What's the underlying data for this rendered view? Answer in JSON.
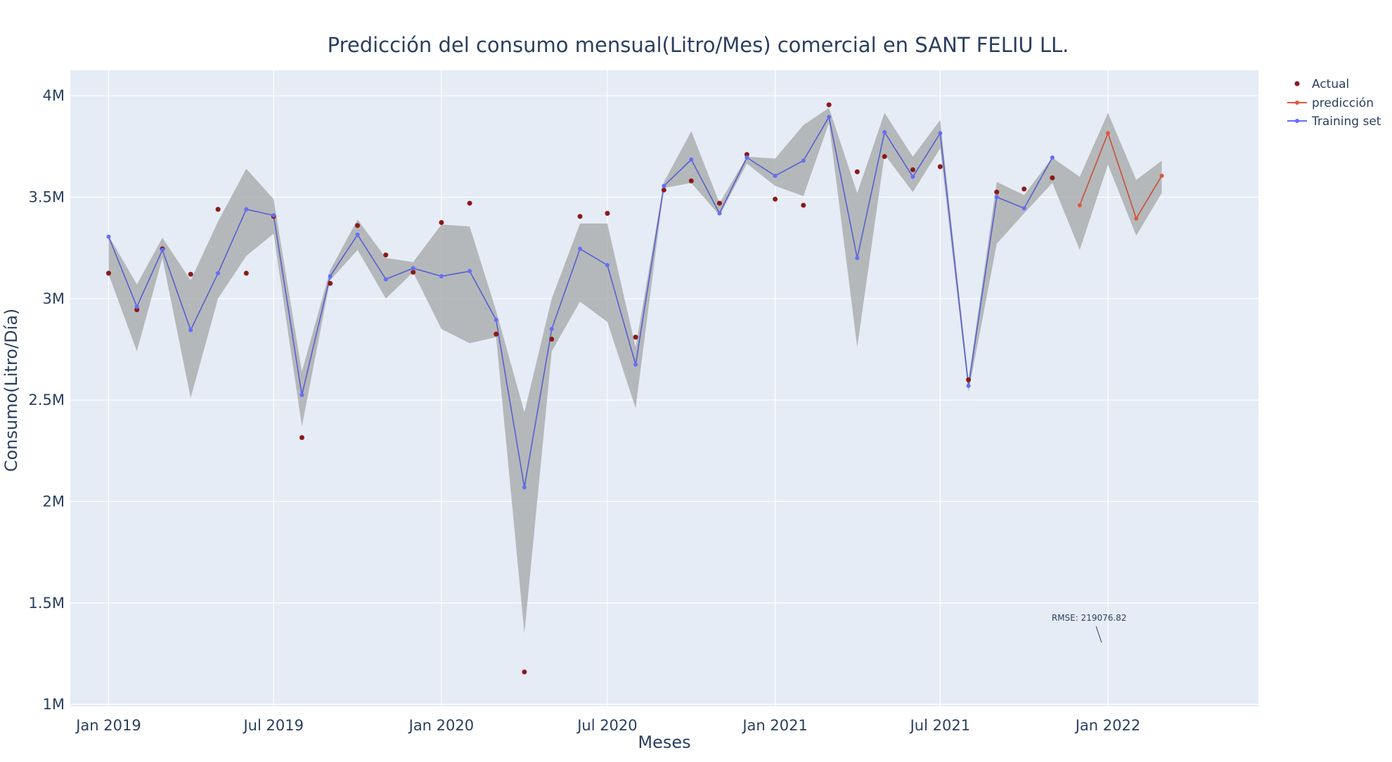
{
  "chart_data": {
    "type": "line",
    "title": "Predicción del consumo mensual(Litro/Mes) comercial en SANT FELIU LL.",
    "xlabel": "Meses",
    "ylabel": "Consumo(Litro/Día)",
    "x_ticks": [
      {
        "date": "2019-01-01",
        "label": "Jan 2019"
      },
      {
        "date": "2019-07-01",
        "label": "Jul 2019"
      },
      {
        "date": "2020-01-01",
        "label": "Jan 2020"
      },
      {
        "date": "2020-07-01",
        "label": "Jul 2020"
      },
      {
        "date": "2021-01-01",
        "label": "Jan 2021"
      },
      {
        "date": "2021-07-01",
        "label": "Jul 2021"
      },
      {
        "date": "2022-01-01",
        "label": "Jan 2022"
      }
    ],
    "xlim": [
      "2018-11-20",
      "2022-06-15"
    ],
    "y_ticks": [
      {
        "value": 1000000,
        "label": "1M"
      },
      {
        "value": 1500000,
        "label": "1.5M"
      },
      {
        "value": 2000000,
        "label": "2M"
      },
      {
        "value": 2500000,
        "label": "2.5M"
      },
      {
        "value": 3000000,
        "label": "3M"
      },
      {
        "value": 3500000,
        "label": "3.5M"
      },
      {
        "value": 4000000,
        "label": "4M"
      }
    ],
    "ylim": [
      990000,
      4125000
    ],
    "grid": true,
    "legend_position": "top-right",
    "legend": [
      {
        "name": "Actual",
        "kind": "marker",
        "color": "#8b1a1a"
      },
      {
        "name": "predicción",
        "kind": "line",
        "color": "#e0573f"
      },
      {
        "name": "Training set",
        "kind": "line",
        "color": "#636efa"
      }
    ],
    "colors": {
      "background": "#e5ecf6",
      "grid": "#ffffff",
      "actual": "#8b1a1a",
      "prediction": "#e0573f",
      "prediction_line": "#c8503a",
      "training": "#636efa",
      "training_line": "#5560d0",
      "band": "#a9abab",
      "text": "#2a3f5f"
    },
    "series": [
      {
        "name": "Actual",
        "x": [
          "2019-01-01",
          "2019-02-01",
          "2019-03-01",
          "2019-04-01",
          "2019-05-01",
          "2019-06-01",
          "2019-07-01",
          "2019-08-01",
          "2019-09-01",
          "2019-10-01",
          "2019-11-01",
          "2019-12-01",
          "2020-01-01",
          "2020-02-01",
          "2020-03-01",
          "2020-04-01",
          "2020-05-01",
          "2020-06-01",
          "2020-07-01",
          "2020-08-01",
          "2020-09-01",
          "2020-10-01",
          "2020-11-01",
          "2020-12-01",
          "2021-01-01",
          "2021-02-01",
          "2021-03-01",
          "2021-04-01",
          "2021-05-01",
          "2021-06-01",
          "2021-07-01",
          "2021-08-01",
          "2021-09-01",
          "2021-10-01",
          "2021-11-01"
        ],
        "values": [
          3125000,
          2945000,
          3245000,
          3120000,
          3440000,
          3125000,
          3405000,
          2315000,
          3075000,
          3360000,
          3215000,
          3130000,
          3375000,
          3470000,
          2825000,
          1160000,
          2800000,
          3405000,
          3420000,
          2810000,
          3535000,
          3580000,
          3470000,
          3710000,
          3490000,
          3460000,
          3955000,
          3625000,
          3700000,
          3635000,
          3650000,
          2600000,
          3525000,
          3540000,
          3595000
        ]
      },
      {
        "name": "Training set",
        "x": [
          "2019-01-01",
          "2019-02-01",
          "2019-03-01",
          "2019-04-01",
          "2019-05-01",
          "2019-06-01",
          "2019-07-01",
          "2019-08-01",
          "2019-09-01",
          "2019-10-01",
          "2019-11-01",
          "2019-12-01",
          "2020-01-01",
          "2020-02-01",
          "2020-03-01",
          "2020-04-01",
          "2020-05-01",
          "2020-06-01",
          "2020-07-01",
          "2020-08-01",
          "2020-09-01",
          "2020-10-01",
          "2020-11-01",
          "2020-12-01",
          "2021-01-01",
          "2021-02-01",
          "2021-03-01",
          "2021-04-01",
          "2021-05-01",
          "2021-06-01",
          "2021-07-01",
          "2021-08-01",
          "2021-09-01",
          "2021-10-01",
          "2021-11-01"
        ],
        "values": [
          3305000,
          2960000,
          3240000,
          2845000,
          3125000,
          3440000,
          3410000,
          2525000,
          3110000,
          3315000,
          3095000,
          3150000,
          3110000,
          3135000,
          2895000,
          2070000,
          2850000,
          3245000,
          3165000,
          2675000,
          3555000,
          3685000,
          3420000,
          3695000,
          3605000,
          3680000,
          3895000,
          3200000,
          3820000,
          3600000,
          3815000,
          2570000,
          3500000,
          3445000,
          3695000
        ]
      },
      {
        "name": "predicción",
        "x": [
          "2021-12-01",
          "2022-01-01",
          "2022-02-01",
          "2022-03-01"
        ],
        "values": [
          3460000,
          3815000,
          3395000,
          3605000
        ]
      }
    ],
    "confidence_band": {
      "x": [
        "2019-01-01",
        "2019-02-01",
        "2019-03-01",
        "2019-04-01",
        "2019-05-01",
        "2019-06-01",
        "2019-07-01",
        "2019-08-01",
        "2019-09-01",
        "2019-10-01",
        "2019-11-01",
        "2019-12-01",
        "2020-01-01",
        "2020-02-01",
        "2020-03-01",
        "2020-04-01",
        "2020-05-01",
        "2020-06-01",
        "2020-07-01",
        "2020-08-01",
        "2020-09-01",
        "2020-10-01",
        "2020-11-01",
        "2020-12-01",
        "2021-01-01",
        "2021-02-01",
        "2021-03-01",
        "2021-04-01",
        "2021-05-01",
        "2021-06-01",
        "2021-07-01",
        "2021-08-01",
        "2021-09-01",
        "2021-10-01",
        "2021-11-01",
        "2021-12-01",
        "2022-01-01",
        "2022-02-01",
        "2022-03-01"
      ],
      "upper": [
        3310000,
        3070000,
        3300000,
        3090000,
        3380000,
        3640000,
        3490000,
        2640000,
        3140000,
        3390000,
        3200000,
        3180000,
        3365000,
        3355000,
        2940000,
        2440000,
        3000000,
        3370000,
        3370000,
        2760000,
        3575000,
        3825000,
        3470000,
        3700000,
        3690000,
        3855000,
        3940000,
        3520000,
        3915000,
        3700000,
        3880000,
        2600000,
        3575000,
        3510000,
        3695000,
        3600000,
        3915000,
        3585000,
        3680000
      ],
      "lower": [
        3120000,
        2740000,
        3200000,
        2510000,
        3000000,
        3210000,
        3320000,
        2370000,
        3090000,
        3240000,
        3000000,
        3130000,
        2850000,
        2780000,
        2810000,
        1350000,
        2740000,
        2985000,
        2885000,
        2460000,
        3545000,
        3570000,
        3410000,
        3665000,
        3555000,
        3505000,
        3865000,
        2760000,
        3710000,
        3525000,
        3740000,
        2540000,
        3270000,
        3420000,
        3570000,
        3240000,
        3660000,
        3310000,
        3520000
      ]
    },
    "annotation": {
      "text": "RMSE: 219076.82",
      "x": "2021-12-25",
      "y": 1305000,
      "arrow_x": "2021-12-19",
      "arrow_y": 1385000
    }
  }
}
